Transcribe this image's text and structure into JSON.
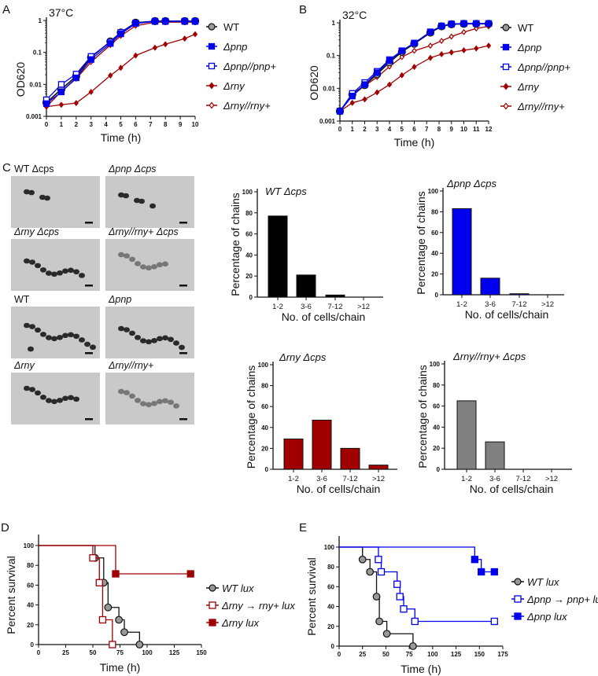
{
  "colors": {
    "wt": "#888888",
    "pnp": "#0000ee",
    "rny": "#a00000",
    "black": "#111111"
  },
  "panel_labels": [
    "A",
    "B",
    "C",
    "D",
    "E"
  ],
  "micrographs": {
    "labels": [
      "WT Δcps",
      "Δpnp Δcps",
      "Δrny Δcps",
      "Δrny//rny+ Δcps",
      "WT",
      "Δpnp",
      "Δrny",
      "Δrny//rny+"
    ]
  },
  "chart_data": [
    {
      "id": "A",
      "type": "line",
      "title": "37°C",
      "xlabel": "Time (h)",
      "ylabel": "OD620",
      "yscale": "log",
      "ylim": [
        0.001,
        1
      ],
      "xlim": [
        0,
        10
      ],
      "xticks": [
        "0",
        "1",
        "2",
        "3",
        "4",
        "5",
        "6",
        "7",
        "8",
        "9",
        "10"
      ],
      "yticks": [
        "0.001",
        "0.01",
        "0.1",
        "1"
      ],
      "x": [
        0,
        1,
        2,
        3,
        4.3,
        5,
        6,
        7.3,
        8,
        9.3,
        10
      ],
      "series": [
        {
          "name": "WT",
          "values": [
            0.0027,
            0.007,
            0.018,
            0.07,
            0.22,
            0.42,
            0.85,
            0.95,
            0.95,
            0.95,
            0.95
          ]
        },
        {
          "name": "Δpnp",
          "values": [
            0.0025,
            0.0058,
            0.016,
            0.06,
            0.19,
            0.38,
            0.8,
            0.93,
            0.93,
            0.93,
            0.93
          ]
        },
        {
          "name": "Δpnp//pnp+",
          "values": [
            0.0033,
            0.01,
            0.021,
            0.075,
            0.21,
            0.42,
            0.83,
            0.95,
            0.95,
            0.95,
            0.95
          ]
        },
        {
          "name": "Δrny",
          "values": [
            0.002,
            0.0023,
            0.0026,
            0.0058,
            0.019,
            0.033,
            0.08,
            0.14,
            0.18,
            0.27,
            0.37
          ]
        },
        {
          "name": "Δrny//rny+",
          "values": [
            0.002,
            0.006,
            0.015,
            0.05,
            0.17,
            0.33,
            0.68,
            0.88,
            0.88,
            0.88,
            0.88
          ]
        }
      ]
    },
    {
      "id": "B",
      "type": "line",
      "title": "32°C",
      "xlabel": "Time (h)",
      "ylabel": "OD620",
      "yscale": "log",
      "ylim": [
        0.001,
        1
      ],
      "xlim": [
        0,
        12
      ],
      "xticks": [
        "0",
        "1",
        "2",
        "3",
        "4",
        "5",
        "6",
        "7",
        "8",
        "9",
        "10",
        "11",
        "12"
      ],
      "yticks": [
        "0.001",
        "0.01",
        "0.1",
        "1"
      ],
      "x": [
        0,
        1,
        2,
        3,
        4,
        5,
        6,
        7.3,
        8.2,
        9,
        10,
        11,
        12
      ],
      "series": [
        {
          "name": "WT",
          "values": [
            0.002,
            0.0065,
            0.0125,
            0.027,
            0.062,
            0.13,
            0.23,
            0.5,
            0.78,
            0.9,
            0.93,
            0.93,
            0.93
          ]
        },
        {
          "name": "Δpnp",
          "values": [
            0.002,
            0.0058,
            0.013,
            0.03,
            0.07,
            0.14,
            0.24,
            0.52,
            0.8,
            0.92,
            0.95,
            0.95,
            0.95
          ]
        },
        {
          "name": "Δpnp//pnp+",
          "values": [
            0.002,
            0.007,
            0.015,
            0.033,
            0.075,
            0.14,
            0.24,
            0.53,
            0.8,
            0.92,
            0.95,
            0.95,
            0.95
          ]
        },
        {
          "name": "Δrny",
          "values": [
            0.002,
            0.0036,
            0.0046,
            0.0075,
            0.013,
            0.025,
            0.045,
            0.085,
            0.11,
            0.125,
            0.145,
            0.165,
            0.2
          ]
        },
        {
          "name": "Δrny//rny+",
          "values": [
            0.002,
            0.006,
            0.012,
            0.022,
            0.046,
            0.09,
            0.14,
            0.2,
            0.28,
            0.38,
            0.52,
            0.67,
            0.78
          ]
        }
      ]
    },
    {
      "id": "C1",
      "type": "bar",
      "title": "WT Δcps",
      "xlabel": "No. of cells/chain",
      "ylabel": "Percentage of chains",
      "ylim": [
        0,
        100
      ],
      "yticks": [
        "0",
        "20",
        "40",
        "60",
        "80",
        "100"
      ],
      "categories": [
        "1-2",
        "3-6",
        "7-12",
        ">12"
      ],
      "values": [
        77,
        21,
        2,
        0
      ]
    },
    {
      "id": "C2",
      "type": "bar",
      "title": "Δpnp Δcps",
      "xlabel": "No. of cells/chain",
      "ylabel": "Percentage of chains",
      "ylim": [
        0,
        100
      ],
      "yticks": [
        "0",
        "20",
        "40",
        "60",
        "80",
        "100"
      ],
      "categories": [
        "1-2",
        "3-6",
        "7-12",
        ">12"
      ],
      "values": [
        83,
        16,
        1,
        0
      ]
    },
    {
      "id": "C3",
      "type": "bar",
      "title": "Δrny Δcps",
      "xlabel": "No. of cells/chain",
      "ylabel": "Percentage of chains",
      "ylim": [
        0,
        100
      ],
      "yticks": [
        "0",
        "20",
        "40",
        "60",
        "80",
        "100"
      ],
      "categories": [
        "1-2",
        "3-6",
        "7-12",
        ">12"
      ],
      "values": [
        29,
        47,
        20,
        4
      ]
    },
    {
      "id": "C4",
      "type": "bar",
      "title": "Δrny//rny+ Δcps",
      "xlabel": "No. of cells/chain",
      "ylabel": "Percentage of chains",
      "ylim": [
        0,
        100
      ],
      "yticks": [
        "0",
        "20",
        "40",
        "60",
        "80",
        "100"
      ],
      "categories": [
        "1-2",
        "3-6",
        "7-12",
        ">12"
      ],
      "values": [
        65,
        26,
        0,
        0
      ]
    },
    {
      "id": "D",
      "type": "line",
      "subtype": "survival",
      "xlabel": "Time (h)",
      "ylabel": "Percent survival",
      "xlim": [
        0,
        150
      ],
      "ylim": [
        0,
        100
      ],
      "xticks": [
        "0",
        "25",
        "50",
        "75",
        "100",
        "125",
        "150"
      ],
      "yticks": [
        "0",
        "20",
        "40",
        "60",
        "80",
        "100"
      ],
      "series": [
        {
          "name": "WT lux",
          "x": [
            52,
            60,
            64,
            74,
            79,
            93
          ],
          "y": [
            87.5,
            62.5,
            37.5,
            25,
            12.5,
            0
          ]
        },
        {
          "name": "Δrny → rny+ lux",
          "x": [
            50,
            56,
            59,
            68
          ],
          "y": [
            87.5,
            62.5,
            25,
            0
          ]
        },
        {
          "name": "Δrny lux",
          "x": [
            71,
            140
          ],
          "y": [
            71.4,
            71.4
          ]
        }
      ]
    },
    {
      "id": "E",
      "type": "line",
      "subtype": "survival",
      "xlabel": "Time (h)",
      "ylabel": "Percent survival",
      "xlim": [
        0,
        175
      ],
      "ylim": [
        0,
        100
      ],
      "xticks": [
        "0",
        "25",
        "50",
        "75",
        "100",
        "125",
        "150",
        "175"
      ],
      "yticks": [
        "0",
        "20",
        "40",
        "60",
        "80",
        "100"
      ],
      "series": [
        {
          "name": "WT lux",
          "x": [
            25,
            33,
            40,
            43,
            51,
            79
          ],
          "y": [
            87.5,
            75,
            50,
            25,
            12.5,
            0
          ]
        },
        {
          "name": "Δpnp → pnp+ lux",
          "x": [
            42,
            45,
            62,
            65,
            69,
            81,
            166
          ],
          "y": [
            87.5,
            75,
            62.5,
            50,
            37.5,
            25,
            25
          ]
        },
        {
          "name": "Δpnp lux",
          "x": [
            145,
            152,
            166
          ],
          "y": [
            87.5,
            75,
            75
          ]
        }
      ]
    }
  ]
}
